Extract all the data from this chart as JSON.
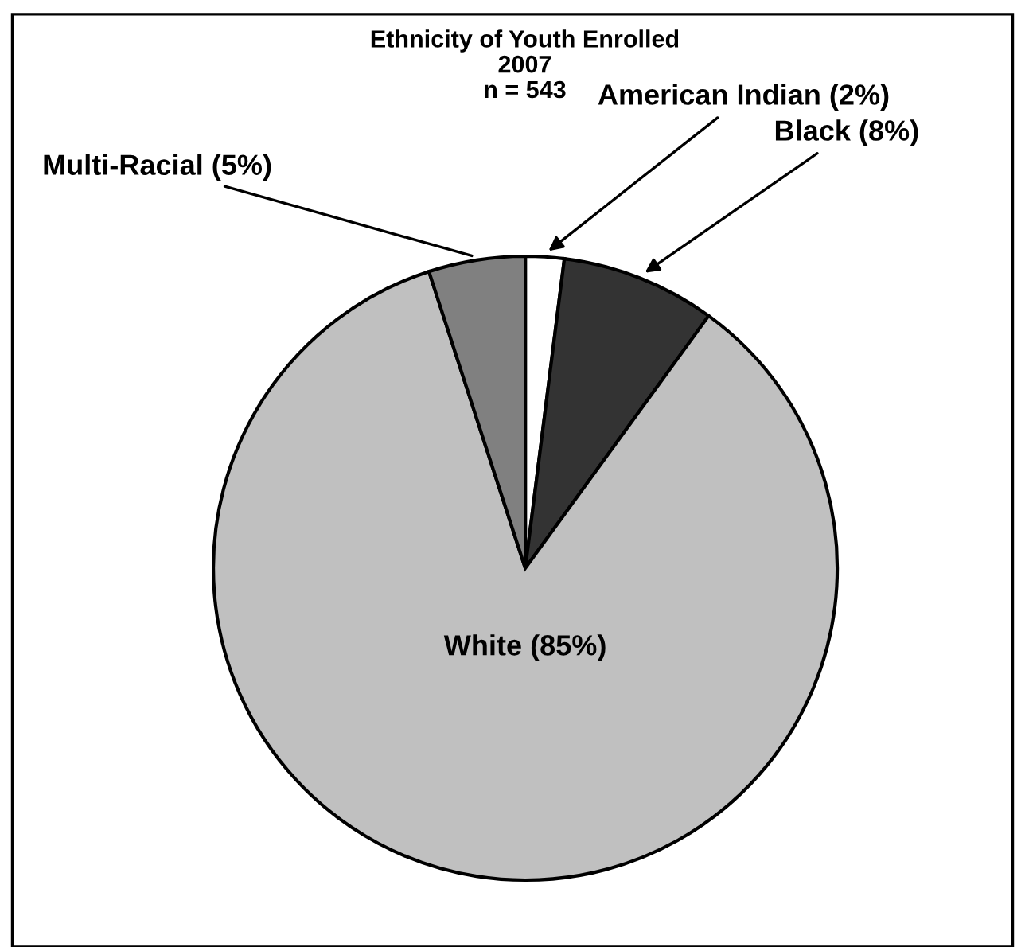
{
  "chart_data": {
    "type": "pie",
    "title": "Ethnicity of Youth Enrolled\n2007\nn = 543",
    "categories": [
      "American Indian (2%)",
      "Black (8%)",
      "White (85%)",
      "Multi-Racial (5%)"
    ],
    "values": [
      2,
      8,
      85,
      5
    ],
    "colors": [
      "#ffffff",
      "#333333",
      "#c0c0c0",
      "#808080"
    ],
    "legend": false
  }
}
